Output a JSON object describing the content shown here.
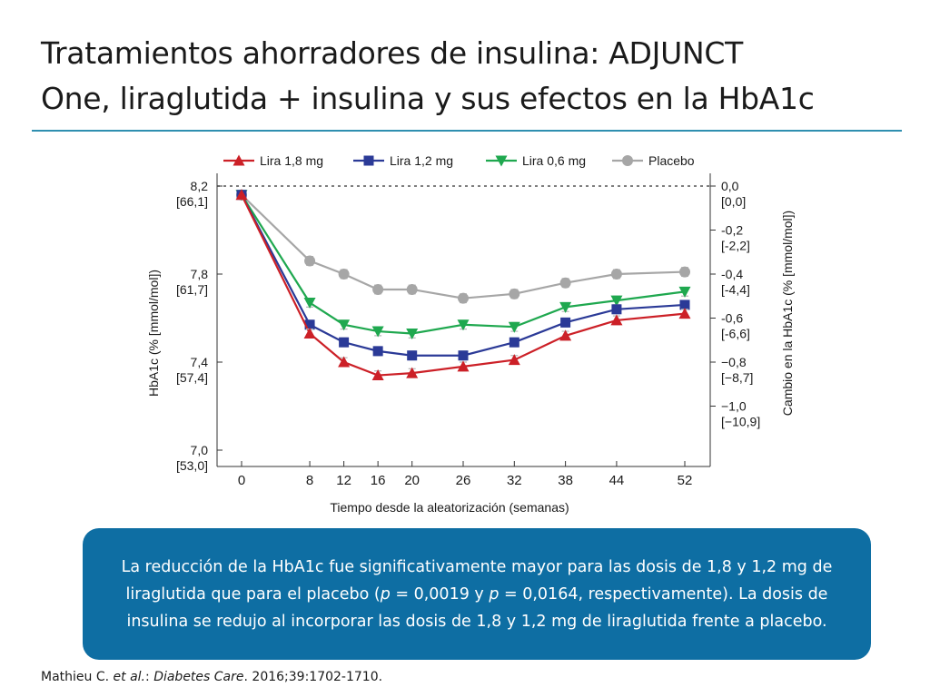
{
  "slide": {
    "title_line1": "Tratamientos ahorradores de insulina: ADJUNCT",
    "title_line2": "One, liraglutida + insulina y sus efectos en la HbA1c"
  },
  "callout": {
    "part1": "La reducción de la HbA1c fue significativamente mayor para las dosis de 1,8 y 1,2 mg de liraglutida que para el placebo (",
    "p_label_1": "p",
    "part2": " = 0,0019 y ",
    "p_label_2": "p",
    "part3": " = 0,0164, respectivamente). La dosis de insulina se redujo al incorporar las dosis de 1,8 y 1,2 mg de liraglutida frente a placebo."
  },
  "citation": {
    "authors": "Mathieu C. ",
    "etal": "et al.",
    "sep": ": ",
    "journal": "Diabetes Care",
    "details": ". 2016;39:1702-1710."
  },
  "colors": {
    "lira18": "#cc2027",
    "lira12": "#2b3a97",
    "lira06": "#1fa84f",
    "placebo": "#a6a6a6",
    "callout_bg": "#0e6ea3",
    "rule": "#2f8fb0"
  },
  "chart_data": {
    "type": "line",
    "xlabel": "Tiempo desde la aleatorización (semanas)",
    "ylabel": "HbA1c (% [mmol/mol])",
    "ylabel_right": "Cambio en la HbA1c (% [mmol/mol])",
    "x": [
      0,
      8,
      12,
      16,
      20,
      26,
      32,
      38,
      44,
      52
    ],
    "xlim": [
      0,
      52
    ],
    "ylim": [
      7.0,
      8.2
    ],
    "yticks_left": [
      {
        "value": 8.2,
        "label": "8,2",
        "sublabel": "[66,1]"
      },
      {
        "value": 7.8,
        "label": "7,8",
        "sublabel": "[61,7]"
      },
      {
        "value": 7.4,
        "label": "7,4",
        "sublabel": "[57,4]"
      },
      {
        "value": 7.0,
        "label": "7,0",
        "sublabel": "[53,0]"
      }
    ],
    "yticks_right": [
      {
        "value": 8.2,
        "label": "0,0",
        "sublabel": "[0,0]"
      },
      {
        "value": 8.0,
        "label": "-0,2",
        "sublabel": "[-2,2]"
      },
      {
        "value": 7.8,
        "label": "-0,4",
        "sublabel": "[-4,4]"
      },
      {
        "value": 7.6,
        "label": "-0,6",
        "sublabel": "[-6,6]"
      },
      {
        "value": 7.4,
        "label": "−0,8",
        "sublabel": "[−8,7]"
      },
      {
        "value": 7.2,
        "label": "−1,0",
        "sublabel": "[−10,9]"
      }
    ],
    "baseline": 8.2,
    "legend_position": "top",
    "series": [
      {
        "name": "Lira 1,8 mg",
        "color": "#cc2027",
        "marker": "triangle-up",
        "values": [
          8.16,
          7.53,
          7.4,
          7.34,
          7.35,
          7.38,
          7.41,
          7.52,
          7.59,
          7.62
        ]
      },
      {
        "name": "Lira 1,2 mg",
        "color": "#2b3a97",
        "marker": "square",
        "values": [
          8.16,
          7.57,
          7.49,
          7.45,
          7.43,
          7.43,
          7.49,
          7.58,
          7.64,
          7.66
        ]
      },
      {
        "name": "Lira 0,6 mg",
        "color": "#1fa84f",
        "marker": "triangle-down",
        "values": [
          8.16,
          7.67,
          7.57,
          7.54,
          7.53,
          7.57,
          7.56,
          7.65,
          7.68,
          7.72
        ]
      },
      {
        "name": "Placebo",
        "color": "#a6a6a6",
        "marker": "circle",
        "values": [
          8.16,
          7.86,
          7.8,
          7.73,
          7.73,
          7.69,
          7.71,
          7.76,
          7.8,
          7.81
        ]
      }
    ],
    "error_bar": 0.02
  }
}
